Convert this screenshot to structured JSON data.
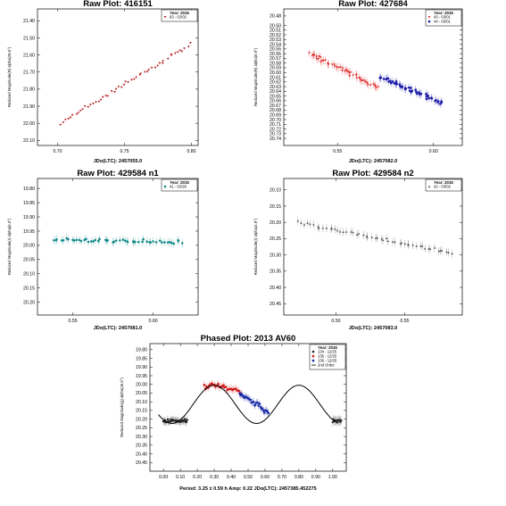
{
  "chart_data": [
    {
      "type": "scatter",
      "title": "Raw Plot: 416151",
      "xlabel": "JDo(LTC): 2457055.0",
      "ylabel": "Reduced Magnitude(R) alpha(28.6°)",
      "xlim": [
        0.685,
        0.805
      ],
      "ylim": [
        22.13,
        21.33
      ],
      "xticks": [
        0.7,
        0.75,
        0.8
      ],
      "xtick_labels": [
        "0.70",
        "0.75",
        "0.80"
      ],
      "yticks": [
        21.4,
        21.5,
        21.6,
        21.7,
        21.8,
        21.9,
        22.0,
        22.1
      ],
      "ytick_labels": [
        "21.40",
        "21.50",
        "21.60",
        "21.70",
        "21.80",
        "21.90",
        "22.00",
        "22.10"
      ],
      "legend": {
        "header": "Year: 2015",
        "entries": [
          "63 - 02/02"
        ]
      },
      "legend_placement": "top-right",
      "grid": false,
      "series": [
        {
          "name": "63 - 02/02",
          "color": "#b51414",
          "marker": "triangle-down",
          "x0": 0.702,
          "x1": 0.799,
          "y0": 22.0,
          "y1": 21.54
        }
      ]
    },
    {
      "type": "scatter",
      "title": "Raw Plot: 427684",
      "xlabel": "JDo(LTC): 2457082.0",
      "ylabel": "Reduced Magnitude(R) alpha(5.9°)",
      "xlim": [
        0.522,
        0.615
      ],
      "ylim": [
        20.755,
        20.465
      ],
      "xticks": [
        0.55,
        0.6
      ],
      "xtick_labels": [
        "0.55",
        "0.60"
      ],
      "yticks": [
        20.48,
        20.5,
        20.51,
        20.52,
        20.53,
        20.54,
        20.55,
        20.56,
        20.57,
        20.58,
        20.59,
        20.6,
        20.61,
        20.62,
        20.63,
        20.64,
        20.65,
        20.66,
        20.67,
        20.68,
        20.69,
        20.7,
        20.71,
        20.72,
        20.73,
        20.74
      ],
      "ytick_labels": [
        "20.48",
        "20.50",
        "20.51",
        "20.52",
        "20.53",
        "20.54",
        "20.55",
        "20.56",
        "20.57",
        "20.58",
        "20.59",
        "20.60",
        "20.61",
        "20.62",
        "20.63",
        "20.64",
        "20.65",
        "20.66",
        "20.67",
        "20.68",
        "20.69",
        "20.70",
        "20.71",
        "20.72",
        "20.73",
        "20.74"
      ],
      "legend": {
        "header": "Year: 2015",
        "entries": [
          "43 - 03/01",
          "44 - 03/01"
        ]
      },
      "legend_placement": "top-right",
      "grid": false,
      "series": [
        {
          "name": "43 - 03/01",
          "color": "#e02020",
          "marker": "triangle-down",
          "x0": 0.535,
          "x1": 0.571,
          "y0": 20.56,
          "y1": 20.63
        },
        {
          "name": "44 - 03/01",
          "color": "#1c1ca8",
          "marker": "circle",
          "x0": 0.572,
          "x1": 0.604,
          "y0": 20.61,
          "y1": 20.665
        }
      ]
    },
    {
      "type": "scatter",
      "title": "Raw Plot: 429584  n1",
      "xlabel": "JDo(LTC): 2457081.0",
      "ylabel": "Reduced Magnitude(r) alpha(6.3°)",
      "xlim": [
        0.528,
        0.628
      ],
      "ylim": [
        20.245,
        19.765
      ],
      "xticks": [
        0.55,
        0.6
      ],
      "xtick_labels": [
        "0.55",
        "0.60"
      ],
      "yticks": [
        19.8,
        19.85,
        19.9,
        19.95,
        20.0,
        20.05,
        20.1,
        20.15,
        20.2
      ],
      "ytick_labels": [
        "19.80",
        "19.85",
        "19.90",
        "19.95",
        "20.00",
        "20.05",
        "20.10",
        "20.15",
        "20.20"
      ],
      "legend": {
        "header": "Year: 2015",
        "entries": [
          "41 - 02/28"
        ]
      },
      "legend_placement": "top-right",
      "grid": false,
      "series": [
        {
          "name": "41 - 02/28",
          "color": "#148a8a",
          "marker": "circle",
          "x0": 0.538,
          "x1": 0.618,
          "y0": 19.98,
          "y1": 19.99
        }
      ]
    },
    {
      "type": "scatter",
      "title": "Raw Plot: 429584  n2",
      "xlabel": "JDo(LTC): 2457083.0",
      "ylabel": "Reduced Magnitude(r) alpha(4.9°)",
      "xlim": [
        0.462,
        0.592
      ],
      "ylim": [
        20.485,
        20.065
      ],
      "xticks": [
        0.5,
        0.55
      ],
      "xtick_labels": [
        "0.50",
        "0.55"
      ],
      "yticks": [
        20.1,
        20.15,
        20.2,
        20.25,
        20.3,
        20.35,
        20.4,
        20.45
      ],
      "ytick_labels": [
        "20.10",
        "20.15",
        "20.20",
        "20.25",
        "20.30",
        "20.35",
        "20.40",
        "20.45"
      ],
      "legend": {
        "header": "Year: 2015",
        "entries": [
          "42 - 03/02"
        ]
      },
      "legend_placement": "top-right",
      "grid": false,
      "series": [
        {
          "name": "42 - 03/02",
          "color": "#555555",
          "marker": "triangle-up",
          "x0": 0.473,
          "x1": 0.585,
          "y0": 20.2,
          "y1": 20.295
        }
      ]
    },
    {
      "type": "scatter",
      "title": "Phased Plot: 2013 AV60",
      "xlabel": "Period: 3.25 ± 0.59 h     Amp: 0.22     JDo(LTC): 2457385.452275",
      "ylabel": "Reduced Magnitude(g) alpha(46.5°)",
      "xlim": [
        -0.08,
        1.08
      ],
      "ylim": [
        20.5,
        19.765
      ],
      "xticks": [
        0.0,
        0.1,
        0.2,
        0.3,
        0.4,
        0.5,
        0.6,
        0.7,
        0.8,
        0.9,
        1.0
      ],
      "xtick_labels": [
        "0.00",
        "0.10",
        "0.20",
        "0.30",
        "0.40",
        "0.50",
        "0.60",
        "0.70",
        "0.80",
        "0.90",
        "1.00"
      ],
      "yticks": [
        19.8,
        19.85,
        19.9,
        19.95,
        20.0,
        20.05,
        20.1,
        20.15,
        20.2,
        20.25,
        20.3,
        20.35,
        20.4,
        20.45
      ],
      "ytick_labels": [
        "19.80",
        "19.85",
        "19.90",
        "19.95",
        "20.00",
        "20.05",
        "20.10",
        "20.15",
        "20.20",
        "20.25",
        "20.30",
        "20.35",
        "20.40",
        "20.45"
      ],
      "legend": {
        "header": "Year: 2015",
        "entries": [
          "134 - 12/25",
          "135 - 12/25",
          "136 - 12/25",
          "2nd Order"
        ]
      },
      "legend_placement": "top-right",
      "grid": false,
      "fit": {
        "name": "2nd Order",
        "mean": 20.115,
        "amp": 0.11,
        "peak_phase": 0.3
      },
      "series": [
        {
          "name": "134 - 12/25",
          "color": "#2a2a2a",
          "marker": "circle",
          "x0": 0.0,
          "x1": 0.14,
          "y0": 20.21,
          "y1": 20.21
        },
        {
          "name": "135 - 12/25",
          "color": "#d21a1a",
          "marker": "circle",
          "x0": 0.24,
          "x1": 0.46,
          "y0": 20.03,
          "y1": 20.08
        },
        {
          "name": "136 - 12/25",
          "color": "#1a2aa6",
          "marker": "circle",
          "x0": 0.45,
          "x1": 0.62,
          "y0": 20.1,
          "y1": 20.15
        }
      ]
    }
  ]
}
